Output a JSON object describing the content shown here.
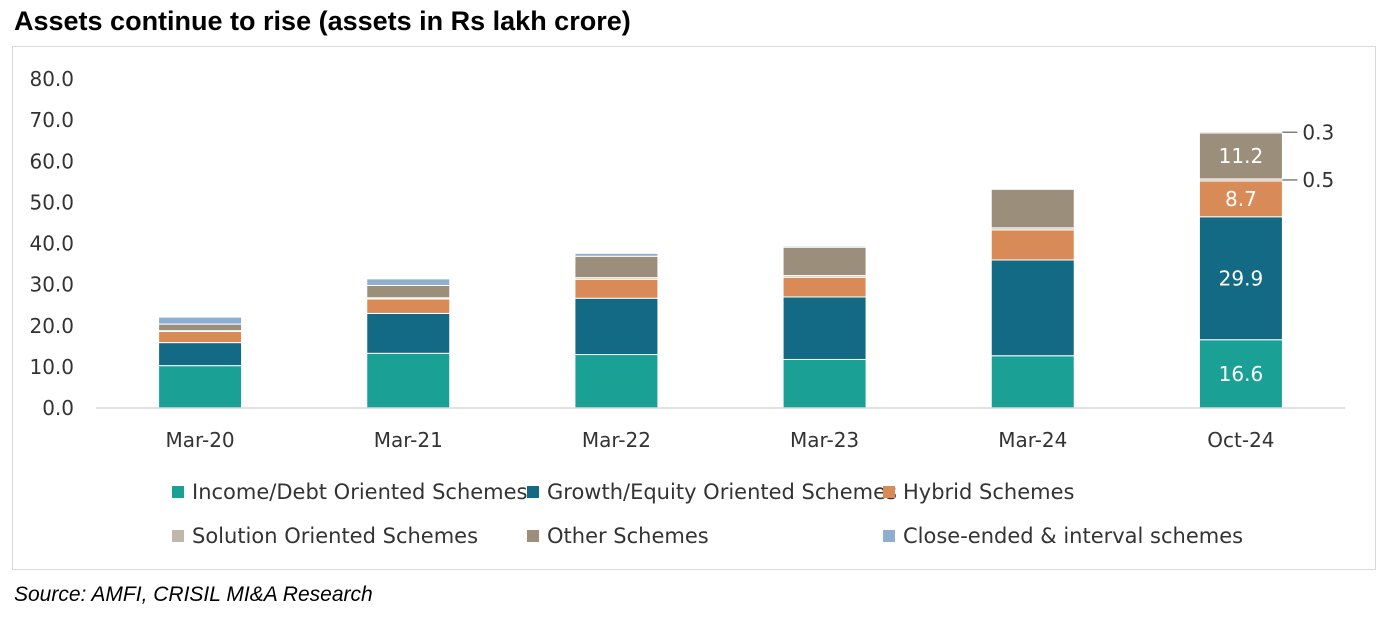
{
  "title": "Assets continue to rise (assets in Rs lakh crore)",
  "source": "Source: AMFI, CRISIL MI&A Research",
  "chart_data": {
    "type": "bar",
    "stacked": true,
    "categories": [
      "Mar-20",
      "Mar-21",
      "Mar-22",
      "Mar-23",
      "Mar-24",
      "Oct-24"
    ],
    "ylim": [
      0,
      80
    ],
    "yticks": [
      "0.0",
      "10.0",
      "20.0",
      "30.0",
      "40.0",
      "50.0",
      "60.0",
      "70.0",
      "80.0"
    ],
    "series": [
      {
        "name": "Income/Debt Oriented Schemes",
        "color": "#1ba095",
        "values": [
          10.3,
          13.3,
          13.0,
          11.8,
          12.7,
          16.6
        ]
      },
      {
        "name": "Growth/Equity Oriented Schemes",
        "color": "#136a85",
        "values": [
          5.6,
          9.7,
          13.7,
          15.2,
          23.3,
          29.9
        ]
      },
      {
        "name": "Hybrid Schemes",
        "color": "#d98b57",
        "values": [
          2.7,
          3.5,
          4.6,
          4.8,
          7.3,
          8.7
        ]
      },
      {
        "name": "Solution Oriented Schemes",
        "color": "#c0b7aa",
        "values": [
          0.2,
          0.3,
          0.4,
          0.4,
          0.5,
          0.5
        ]
      },
      {
        "name": "Other Schemes",
        "color": "#9b8f7c",
        "values": [
          1.6,
          3.0,
          5.2,
          6.9,
          9.4,
          11.2
        ]
      },
      {
        "name": "Close-ended & interval schemes",
        "color": "#8eaed1",
        "values": [
          1.7,
          1.6,
          0.7,
          0.3,
          0.2,
          0.3
        ]
      }
    ],
    "data_labels": [
      {
        "category": "Oct-24",
        "series": "Income/Debt Oriented Schemes",
        "text": "16.6"
      },
      {
        "category": "Oct-24",
        "series": "Growth/Equity Oriented Schemes",
        "text": "29.9"
      },
      {
        "category": "Oct-24",
        "series": "Hybrid Schemes",
        "text": "8.7"
      },
      {
        "category": "Oct-24",
        "series": "Other Schemes",
        "text": "11.2"
      }
    ],
    "callouts": [
      {
        "category": "Oct-24",
        "series": "Close-ended & interval schemes",
        "text": "0.3"
      },
      {
        "category": "Oct-24",
        "series": "Solution Oriented Schemes",
        "text": "0.5"
      }
    ],
    "legend": "bottom",
    "grid": false
  }
}
